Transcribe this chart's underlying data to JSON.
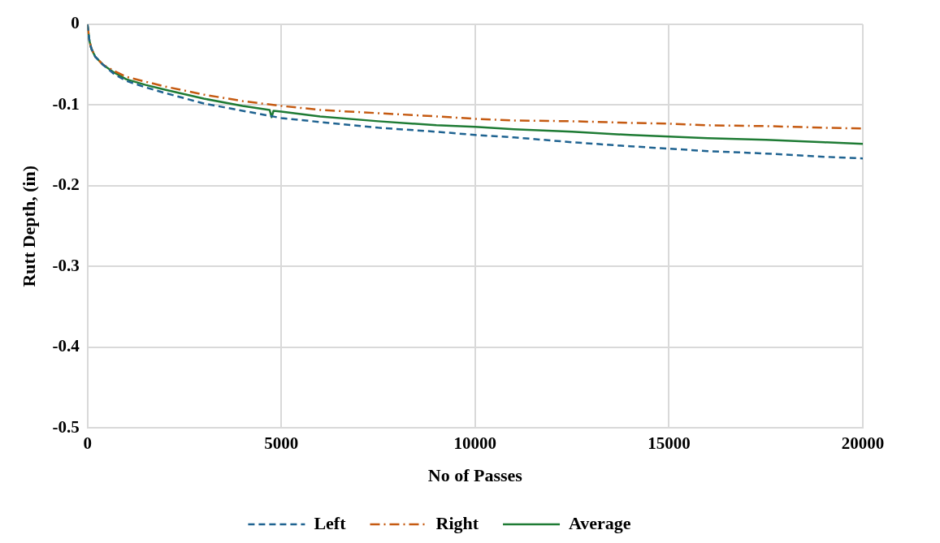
{
  "chart_data": {
    "type": "line",
    "xlabel": "No of Passes",
    "ylabel": "Rutt Depth, (in)",
    "xlim": [
      0,
      20000
    ],
    "xticks": [
      0,
      5000,
      10000,
      15000,
      20000
    ],
    "ylim": [
      -0.5,
      0
    ],
    "yticks": [
      -0.5,
      -0.4,
      -0.3,
      -0.2,
      -0.1,
      0
    ],
    "grid": true,
    "legend": "bottom",
    "marker": "none",
    "series": [
      {
        "name": "Left",
        "color": "#1f6391",
        "line_style": "dashed",
        "x": [
          0,
          50,
          100,
          200,
          400,
          700,
          1000,
          1500,
          2000,
          3000,
          4000,
          5000,
          6000,
          7500,
          9000,
          10000,
          11000,
          12500,
          14000,
          15000,
          16000,
          17500,
          19000,
          20000
        ],
        "values": [
          0,
          -0.02,
          -0.03,
          -0.04,
          -0.05,
          -0.062,
          -0.07,
          -0.078,
          -0.085,
          -0.098,
          -0.107,
          -0.116,
          -0.121,
          -0.128,
          -0.133,
          -0.137,
          -0.14,
          -0.146,
          -0.151,
          -0.154,
          -0.157,
          -0.16,
          -0.164,
          -0.166
        ]
      },
      {
        "name": "Right",
        "color": "#c55a11",
        "line_style": "dashdot",
        "x": [
          0,
          50,
          100,
          200,
          400,
          700,
          1000,
          1500,
          2000,
          3000,
          4000,
          5000,
          6000,
          7500,
          9000,
          10000,
          11000,
          12500,
          14000,
          15000,
          16000,
          17500,
          19000,
          20000
        ],
        "values": [
          0,
          -0.02,
          -0.03,
          -0.04,
          -0.05,
          -0.058,
          -0.065,
          -0.071,
          -0.077,
          -0.087,
          -0.095,
          -0.101,
          -0.106,
          -0.11,
          -0.114,
          -0.117,
          -0.119,
          -0.12,
          -0.122,
          -0.123,
          -0.125,
          -0.126,
          -0.128,
          -0.129
        ]
      },
      {
        "name": "Average",
        "color": "#1e7b34",
        "line_style": "solid",
        "x": [
          0,
          50,
          100,
          200,
          400,
          700,
          1000,
          1500,
          2000,
          3000,
          4000,
          4700,
          4750,
          4800,
          5000,
          6000,
          7500,
          9000,
          10000,
          11000,
          12500,
          14000,
          15000,
          16000,
          17500,
          19000,
          20000
        ],
        "values": [
          0,
          -0.02,
          -0.03,
          -0.04,
          -0.05,
          -0.06,
          -0.068,
          -0.075,
          -0.081,
          -0.092,
          -0.101,
          -0.106,
          -0.115,
          -0.107,
          -0.108,
          -0.114,
          -0.12,
          -0.125,
          -0.127,
          -0.13,
          -0.133,
          -0.137,
          -0.139,
          -0.141,
          -0.143,
          -0.146,
          -0.148
        ]
      }
    ]
  }
}
